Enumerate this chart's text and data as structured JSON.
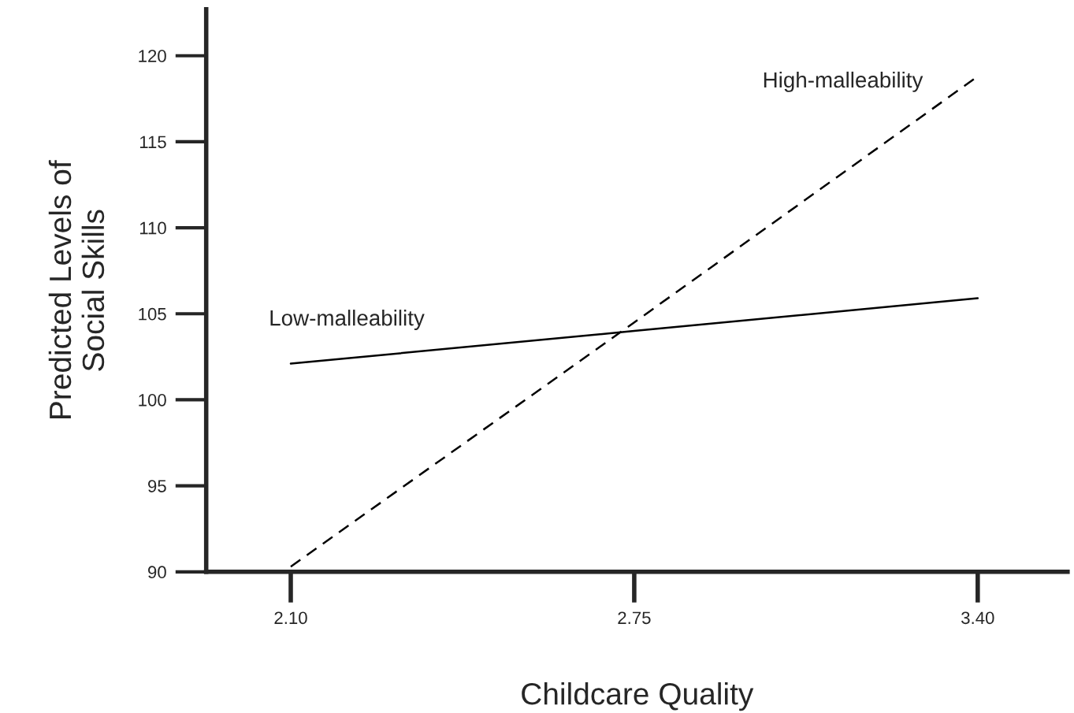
{
  "chart_data": {
    "type": "line",
    "xlabel": "Childcare Quality",
    "ylabel": "Predicted Levels of\nSocial Skills",
    "x": [
      2.1,
      2.75,
      3.4
    ],
    "series": [
      {
        "name": "Low-malleability",
        "color": "#000000",
        "line_style": "solid",
        "values": [
          102.1,
          104.0,
          105.9
        ]
      },
      {
        "name": "High-malleability",
        "color": "#000000",
        "line_style": "dashed",
        "values": [
          90.3,
          104.5,
          118.8
        ]
      }
    ],
    "xlim": [
      1.94,
      3.57
    ],
    "ylim": [
      90,
      122.7
    ],
    "xticks": [
      {
        "value": 2.1,
        "label": "2.10"
      },
      {
        "value": 2.75,
        "label": "2.75"
      },
      {
        "value": 3.4,
        "label": "3.40"
      }
    ],
    "yticks": [
      90,
      95,
      100,
      105,
      110,
      115,
      120
    ],
    "grid": false,
    "legend": false,
    "marker": "none"
  }
}
